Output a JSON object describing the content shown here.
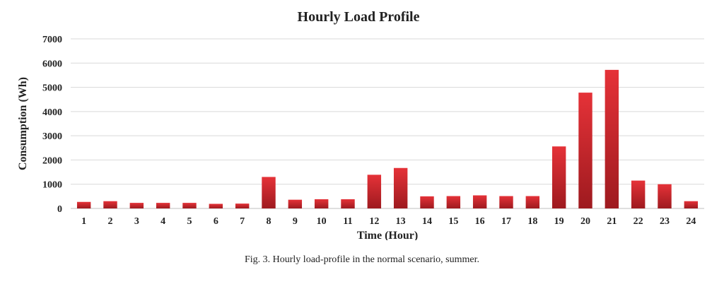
{
  "chart_data": {
    "type": "bar",
    "title": "Hourly Load Profile",
    "xlabel": "Time (Hour)",
    "ylabel": "Consumption (Wh)",
    "ylim": [
      0,
      7000
    ],
    "yticks": [
      0,
      1000,
      2000,
      3000,
      4000,
      5000,
      6000,
      7000
    ],
    "grid": true,
    "legend": "none",
    "categories": [
      "1",
      "2",
      "3",
      "4",
      "5",
      "6",
      "7",
      "8",
      "9",
      "10",
      "11",
      "12",
      "13",
      "14",
      "15",
      "16",
      "17",
      "18",
      "19",
      "20",
      "21",
      "22",
      "23",
      "24"
    ],
    "values": [
      270,
      300,
      230,
      230,
      230,
      190,
      200,
      1300,
      360,
      380,
      380,
      1390,
      1670,
      500,
      510,
      540,
      510,
      510,
      2560,
      4780,
      5720,
      1150,
      1000,
      300
    ],
    "bar_color_top": "#e53238",
    "bar_color_bottom": "#9e1a1f"
  },
  "caption": "Fig. 3. Hourly load-profile in the normal scenario, summer."
}
